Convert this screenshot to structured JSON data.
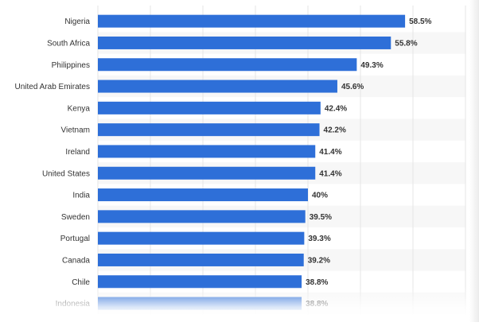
{
  "chart_data": {
    "type": "bar",
    "orientation": "horizontal",
    "categories": [
      "Nigeria",
      "South Africa",
      "Philippines",
      "United Arab Emirates",
      "Kenya",
      "Vietnam",
      "Ireland",
      "United States",
      "India",
      "Sweden",
      "Portugal",
      "Canada",
      "Chile",
      "Indonesia"
    ],
    "values": [
      58.5,
      55.8,
      49.3,
      45.6,
      42.4,
      42.2,
      41.4,
      41.4,
      40,
      39.5,
      39.3,
      39.2,
      38.8,
      38.8
    ],
    "value_labels": [
      "58.5%",
      "55.8%",
      "49.3%",
      "45.6%",
      "42.4%",
      "42.2%",
      "41.4%",
      "41.4%",
      "40%",
      "39.5%",
      "39.3%",
      "39.2%",
      "38.8%",
      "38.8%"
    ],
    "xlim": [
      0,
      70
    ],
    "grid": true,
    "title": "",
    "xlabel": "",
    "ylabel": ""
  },
  "colors": {
    "bar": "#2e6fd8",
    "grid": "#e6e6e6",
    "stripe": "#f7f7f7",
    "text": "#333333"
  }
}
